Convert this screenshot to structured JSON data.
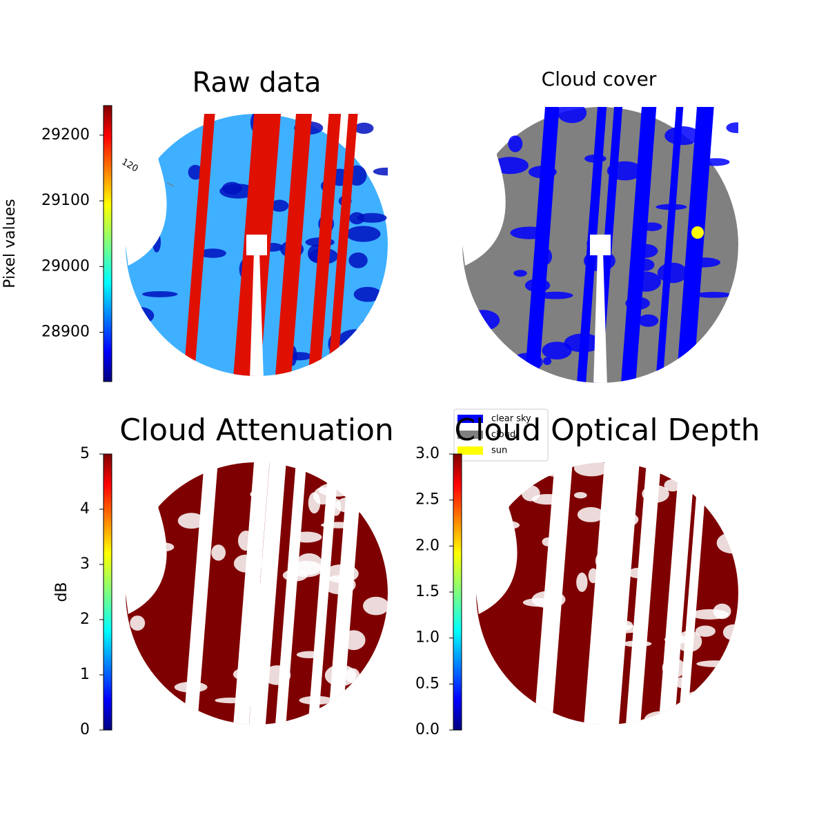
{
  "chart_data": [
    {
      "type": "image",
      "title": "Raw data",
      "annotations": [
        "120"
      ],
      "colorbar": {
        "label": "Pixel values",
        "colormap": "jet",
        "ylim": [
          28825,
          29245
        ],
        "yticks": [
          28900,
          29000,
          29100,
          29200
        ]
      }
    },
    {
      "type": "image",
      "title": "Cloud cover",
      "legend": {
        "series": [
          {
            "name": "clear sky",
            "color": "#0000ff"
          },
          {
            "name": "cloud",
            "color": "#808080"
          },
          {
            "name": "sun",
            "color": "#ffff00"
          }
        ]
      }
    },
    {
      "type": "image",
      "title": "Cloud Attenuation",
      "colorbar": {
        "label": "dB",
        "colormap": "jet",
        "ylim": [
          0,
          5
        ],
        "yticks": [
          0,
          1,
          2,
          3,
          4,
          5
        ]
      }
    },
    {
      "type": "image",
      "title": "Cloud Optical Depth",
      "colorbar": {
        "colormap": "jet",
        "ylim": [
          0,
          3
        ],
        "yticks": [
          {
            "value": 0,
            "label": "0.0"
          },
          {
            "value": 0.5,
            "label": "0.5"
          },
          {
            "value": 1,
            "label": "1.0"
          },
          {
            "value": 1.5,
            "label": "1.5"
          },
          {
            "value": 2,
            "label": "2.0"
          },
          {
            "value": 2.5,
            "label": "2.5"
          },
          {
            "value": 3,
            "label": "3.0"
          }
        ]
      }
    }
  ]
}
